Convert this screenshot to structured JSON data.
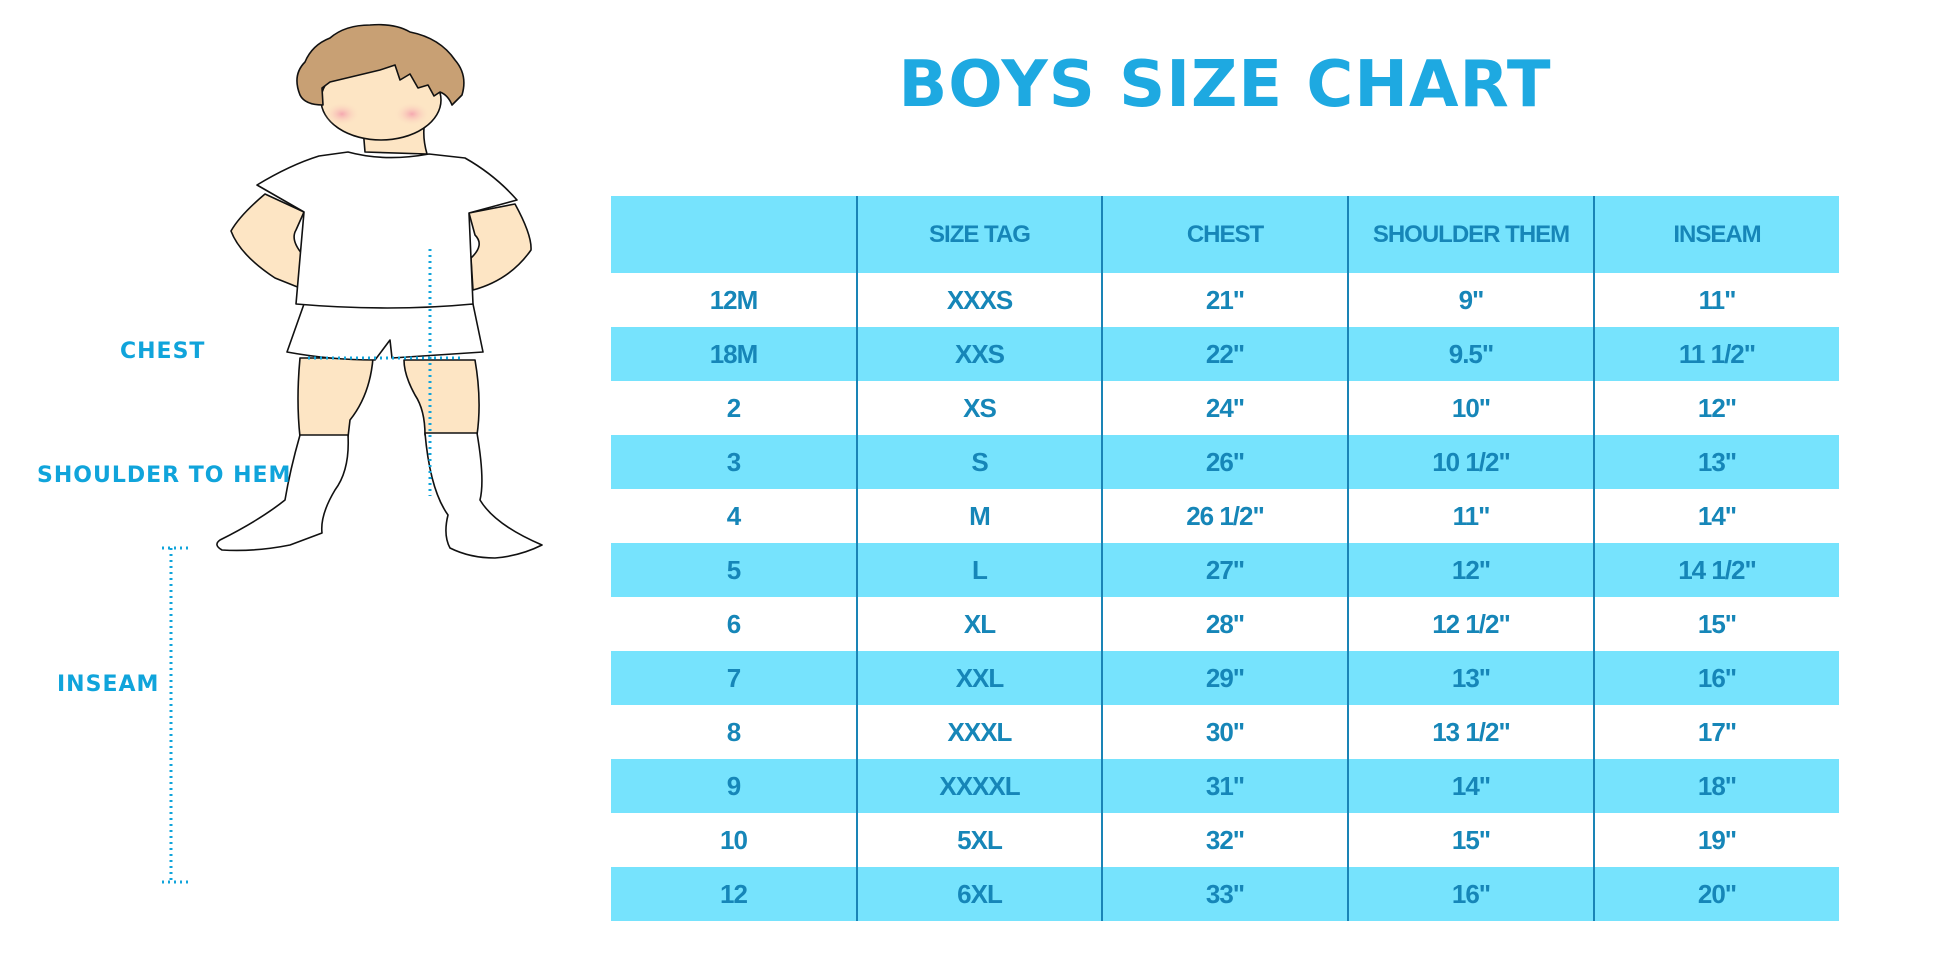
{
  "title": "BOYS SIZE CHART",
  "figure_labels": {
    "chest": "CHEST",
    "shoulder_to_hem": "SHOULDER TO HEM",
    "inseam": "INSEAM"
  },
  "colors": {
    "accent": "#1ea9e1",
    "table_fill": "#76e3fd",
    "table_text": "#1686b8",
    "measure_line": "#10a4db"
  },
  "table": {
    "headers": [
      "",
      "SIZE TAG",
      "CHEST",
      "SHOULDER THEM",
      "INSEAM"
    ],
    "rows": [
      [
        "12M",
        "XXXS",
        "21\"",
        "9\"",
        "11\""
      ],
      [
        "18M",
        "XXS",
        "22\"",
        "9.5\"",
        "11 1/2\""
      ],
      [
        "2",
        "XS",
        "24\"",
        "10\"",
        "12\""
      ],
      [
        "3",
        "S",
        "26\"",
        "10 1/2\"",
        "13\""
      ],
      [
        "4",
        "M",
        "26 1/2\"",
        "11\"",
        "14\""
      ],
      [
        "5",
        "L",
        "27\"",
        "12\"",
        "14 1/2\""
      ],
      [
        "6",
        "XL",
        "28\"",
        "12 1/2\"",
        "15\""
      ],
      [
        "7",
        "XXL",
        "29\"",
        "13\"",
        "16\""
      ],
      [
        "8",
        "XXXL",
        "30\"",
        "13 1/2\"",
        "17\""
      ],
      [
        "9",
        "XXXXL",
        "31\"",
        "14\"",
        "18\""
      ],
      [
        "10",
        "5XL",
        "32\"",
        "15\"",
        "19\""
      ],
      [
        "12",
        "6XL",
        "33\"",
        "16\"",
        "20\""
      ]
    ]
  }
}
